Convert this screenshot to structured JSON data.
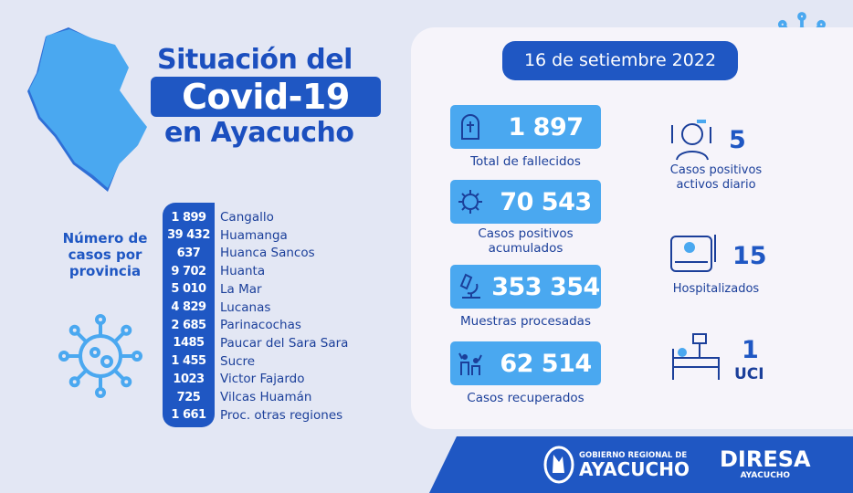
{
  "title": {
    "line1": "Situación del",
    "line2": "Covid-19",
    "line3": "en Ayacucho"
  },
  "date": "16 de setiembre 2022",
  "provinces_label": "Número de casos por provincia",
  "provinces": [
    {
      "count": "1 899",
      "name": "Cangallo"
    },
    {
      "count": "39 432",
      "name": "Huamanga"
    },
    {
      "count": "637",
      "name": "Huanca Sancos"
    },
    {
      "count": "9 702",
      "name": "Huanta"
    },
    {
      "count": "5 010",
      "name": "La Mar"
    },
    {
      "count": "4 829",
      "name": "Lucanas"
    },
    {
      "count": "2 685",
      "name": "Parinacochas"
    },
    {
      "count": "1485",
      "name": "Paucar del Sara Sara"
    },
    {
      "count": "1 455",
      "name": "Sucre"
    },
    {
      "count": "1023",
      "name": "Victor Fajardo"
    },
    {
      "count": "725",
      "name": "Vilcas Huamán"
    },
    {
      "count": "1 661",
      "name": "Proc. otras regiones"
    }
  ],
  "stats": [
    {
      "value": "1 897",
      "label": "Total de fallecidos",
      "icon": "tombstone-icon"
    },
    {
      "value": "70 543",
      "label": "Casos positivos acumulados",
      "icon": "virus-icon"
    },
    {
      "value": "353 354",
      "label": "Muestras procesadas",
      "icon": "microscope-icon"
    },
    {
      "value": "62 514",
      "label": "Casos recuperados",
      "icon": "family-icon"
    }
  ],
  "side_stats": [
    {
      "value": "5",
      "label": "Casos positivos activos diario",
      "icon": "sick-person-icon"
    },
    {
      "value": "15",
      "label": "Hospitalizados",
      "icon": "hospital-bed-icon"
    },
    {
      "value": "1",
      "label": "UCI",
      "icon": "icu-bed-icon"
    }
  ],
  "footer": {
    "gob_small": "GOBIERNO REGIONAL DE",
    "gob_big": "AYACUCHO",
    "diresa_big": "DIRESA",
    "diresa_small": "AYACUCHO"
  },
  "colors": {
    "blue": "#1f57c3",
    "cyan": "#4aa8f0",
    "bg": "#e3e7f4"
  }
}
